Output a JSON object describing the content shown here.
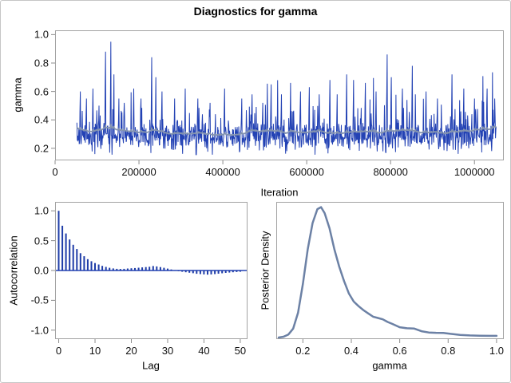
{
  "title": "Diagnostics for gamma",
  "colors": {
    "series_blue": "#2342b4",
    "bar_blue": "#1e3ca8",
    "smooth_blue_gray": "#8292af",
    "density_blue": "#6c81a5",
    "panel_border": "#a3a3a3",
    "figure_border": "#c6c6c6",
    "tick": "#8c8c8c",
    "text": "#000000",
    "background": "#ffffff"
  },
  "chart_data": [
    {
      "id": "trace",
      "type": "line",
      "title": "",
      "xlabel": "Iteration",
      "ylabel": "gamma",
      "xlim": [
        0,
        1070000
      ],
      "ylim": [
        0.115,
        1.03
      ],
      "xticks": {
        "values": [
          0,
          200000,
          400000,
          600000,
          800000,
          1000000
        ],
        "labels": [
          "0",
          "200000",
          "400000",
          "600000",
          "800000",
          "1000000"
        ]
      },
      "yticks": {
        "values": [
          0.2,
          0.4,
          0.6,
          0.8,
          1.0
        ],
        "labels": [
          "0.2",
          "0.4",
          "0.6",
          "0.8",
          "1.0"
        ]
      },
      "series": [
        {
          "name": "gamma-mcmc-samples",
          "style": "jagged-line",
          "color_key": "series_blue"
        },
        {
          "name": "smoothed-overlay",
          "style": "smooth-line",
          "color_key": "smooth_blue_gray"
        }
      ],
      "generator": {
        "seed": 42,
        "n_points": 1100,
        "x_start": 52000,
        "x_end": 1052000,
        "baseline": 0.28,
        "noise_sd": 0.05,
        "y_min": 0.155,
        "y_max": 0.96,
        "spikes": [
          [
            52000,
            0.38
          ],
          [
            60000,
            0.6
          ],
          [
            75000,
            0.55
          ],
          [
            90000,
            0.62
          ],
          [
            105000,
            0.5
          ],
          [
            120000,
            0.88
          ],
          [
            133000,
            0.95
          ],
          [
            140000,
            0.72
          ],
          [
            152000,
            0.55
          ],
          [
            165000,
            0.52
          ],
          [
            188000,
            0.62
          ],
          [
            205000,
            0.55
          ],
          [
            230000,
            0.84
          ],
          [
            240000,
            0.7
          ],
          [
            255000,
            0.6
          ],
          [
            285000,
            0.55
          ],
          [
            310000,
            0.62
          ],
          [
            340000,
            0.55
          ],
          [
            370000,
            0.52
          ],
          [
            404000,
            0.62
          ],
          [
            445000,
            0.55
          ],
          [
            470000,
            0.58
          ],
          [
            495000,
            0.52
          ],
          [
            515000,
            0.65
          ],
          [
            540000,
            0.58
          ],
          [
            562000,
            0.66
          ],
          [
            585000,
            0.6
          ],
          [
            606000,
            0.63
          ],
          [
            630000,
            0.58
          ],
          [
            655000,
            0.68
          ],
          [
            673000,
            0.58
          ],
          [
            695000,
            0.72
          ],
          [
            712000,
            0.68
          ],
          [
            740000,
            0.66
          ],
          [
            765000,
            0.6
          ],
          [
            792000,
            0.86
          ],
          [
            802000,
            0.7
          ],
          [
            828000,
            0.62
          ],
          [
            852000,
            0.78
          ],
          [
            885000,
            0.6
          ],
          [
            912000,
            0.55
          ],
          [
            946000,
            0.72
          ],
          [
            975000,
            0.62
          ],
          [
            1000000,
            0.55
          ],
          [
            1030000,
            0.62
          ],
          [
            1048000,
            0.55
          ]
        ]
      }
    },
    {
      "id": "acf",
      "type": "bar",
      "title": "",
      "xlabel": "Lag",
      "ylabel": "Autocorrelation",
      "xlim": [
        -1,
        52
      ],
      "ylim": [
        -1.15,
        1.15
      ],
      "xticks": {
        "values": [
          0,
          10,
          20,
          30,
          40,
          50
        ],
        "labels": [
          "0",
          "10",
          "20",
          "30",
          "40",
          "50"
        ]
      },
      "yticks": {
        "values": [
          -1.0,
          -0.5,
          0.0,
          0.5,
          1.0
        ],
        "labels": [
          "-1.0",
          "-0.5",
          "0.0",
          "0.5",
          "1.0"
        ]
      },
      "lags": [
        0,
        1,
        2,
        3,
        4,
        5,
        6,
        7,
        8,
        9,
        10,
        11,
        12,
        13,
        14,
        15,
        16,
        17,
        18,
        19,
        20,
        21,
        22,
        23,
        24,
        25,
        26,
        27,
        28,
        29,
        30,
        31,
        32,
        33,
        34,
        35,
        36,
        37,
        38,
        39,
        40,
        41,
        42,
        43,
        44,
        45,
        46,
        47,
        48,
        49,
        50
      ],
      "values": [
        1.0,
        0.75,
        0.62,
        0.52,
        0.43,
        0.36,
        0.29,
        0.24,
        0.19,
        0.155,
        0.125,
        0.1,
        0.078,
        0.06,
        0.045,
        0.035,
        0.028,
        0.025,
        0.028,
        0.033,
        0.038,
        0.042,
        0.047,
        0.052,
        0.058,
        0.063,
        0.075,
        0.068,
        0.058,
        0.045,
        0.032,
        0.018,
        0.004,
        -0.012,
        -0.022,
        -0.03,
        -0.038,
        -0.046,
        -0.055,
        -0.06,
        -0.066,
        -0.07,
        -0.065,
        -0.06,
        -0.054,
        -0.047,
        -0.04,
        -0.035,
        -0.03,
        -0.026,
        -0.022
      ]
    },
    {
      "id": "density",
      "type": "line",
      "title": "",
      "xlabel": "gamma",
      "ylabel": "Posterior Density",
      "xlim": [
        0.09,
        1.03
      ],
      "ylim": [
        0,
        1.04
      ],
      "xticks": {
        "values": [
          0.2,
          0.4,
          0.6,
          0.8,
          1.0
        ],
        "labels": [
          "0.2",
          "0.4",
          "0.6",
          "0.8",
          "1.0"
        ]
      },
      "yticks": {
        "values": [],
        "labels": []
      },
      "points": [
        [
          0.1,
          0.012
        ],
        [
          0.12,
          0.018
        ],
        [
          0.14,
          0.035
        ],
        [
          0.16,
          0.08
        ],
        [
          0.18,
          0.2
        ],
        [
          0.2,
          0.42
        ],
        [
          0.22,
          0.68
        ],
        [
          0.24,
          0.88
        ],
        [
          0.26,
          0.985
        ],
        [
          0.275,
          1.0
        ],
        [
          0.29,
          0.955
        ],
        [
          0.31,
          0.84
        ],
        [
          0.33,
          0.68
        ],
        [
          0.35,
          0.55
        ],
        [
          0.37,
          0.44
        ],
        [
          0.39,
          0.345
        ],
        [
          0.41,
          0.285
        ],
        [
          0.43,
          0.25
        ],
        [
          0.45,
          0.22
        ],
        [
          0.47,
          0.195
        ],
        [
          0.49,
          0.17
        ],
        [
          0.51,
          0.16
        ],
        [
          0.53,
          0.15
        ],
        [
          0.55,
          0.13
        ],
        [
          0.57,
          0.115
        ],
        [
          0.6,
          0.09
        ],
        [
          0.63,
          0.082
        ],
        [
          0.66,
          0.08
        ],
        [
          0.69,
          0.06
        ],
        [
          0.72,
          0.05
        ],
        [
          0.75,
          0.048
        ],
        [
          0.78,
          0.047
        ],
        [
          0.81,
          0.04
        ],
        [
          0.85,
          0.032
        ],
        [
          0.89,
          0.028
        ],
        [
          0.93,
          0.026
        ],
        [
          0.97,
          0.025
        ],
        [
          1.0,
          0.025
        ]
      ]
    }
  ]
}
